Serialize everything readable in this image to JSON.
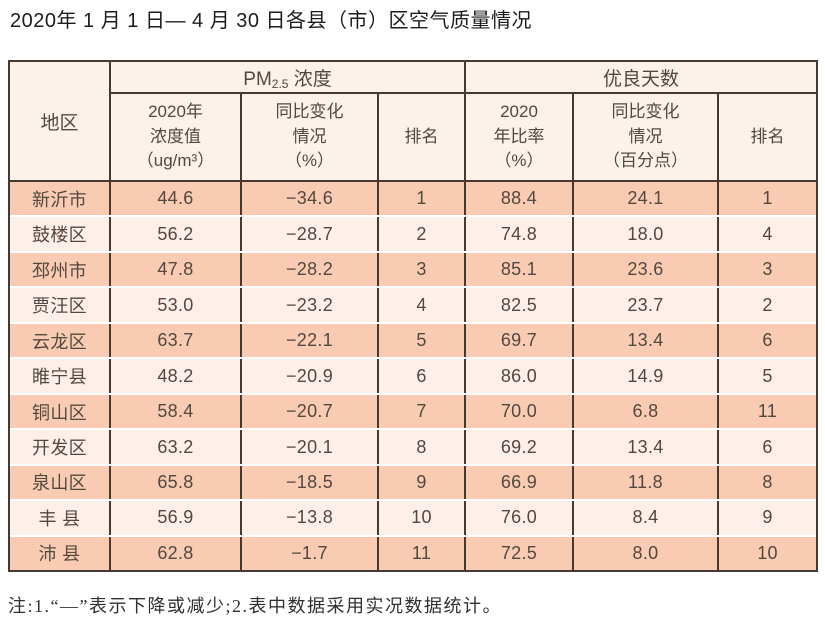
{
  "title": "2020年 1 月 1 日— 4 月 30 日各县（市）区空气质量情况",
  "note": "注:1.“—”表示下降或减少;2.表中数据采用实况数据统计。",
  "table": {
    "region_header": "地区",
    "pm_group": {
      "prefix": "PM",
      "sub": "2.5",
      "suffix": " 浓度"
    },
    "good_group": "优良天数",
    "sub_headers": [
      "2020年\n浓度值\n（ug/m³）",
      "同比变化\n情况\n（%）",
      "排名",
      "2020\n年比率\n（%）",
      "同比变化\n情况\n（百分点）",
      "排名"
    ],
    "rows": [
      {
        "region": "新沂市",
        "pm_value": "44.6",
        "pm_change": "−34.6",
        "pm_rank": "1",
        "good_rate": "88.4",
        "good_change": "24.1",
        "good_rank": "1"
      },
      {
        "region": "鼓楼区",
        "pm_value": "56.2",
        "pm_change": "−28.7",
        "pm_rank": "2",
        "good_rate": "74.8",
        "good_change": "18.0",
        "good_rank": "4"
      },
      {
        "region": "邳州市",
        "pm_value": "47.8",
        "pm_change": "−28.2",
        "pm_rank": "3",
        "good_rate": "85.1",
        "good_change": "23.6",
        "good_rank": "3"
      },
      {
        "region": "贾汪区",
        "pm_value": "53.0",
        "pm_change": "−23.2",
        "pm_rank": "4",
        "good_rate": "82.5",
        "good_change": "23.7",
        "good_rank": "2"
      },
      {
        "region": "云龙区",
        "pm_value": "63.7",
        "pm_change": "−22.1",
        "pm_rank": "5",
        "good_rate": "69.7",
        "good_change": "13.4",
        "good_rank": "6"
      },
      {
        "region": "睢宁县",
        "pm_value": "48.2",
        "pm_change": "−20.9",
        "pm_rank": "6",
        "good_rate": "86.0",
        "good_change": "14.9",
        "good_rank": "5"
      },
      {
        "region": "铜山区",
        "pm_value": "58.4",
        "pm_change": "−20.7",
        "pm_rank": "7",
        "good_rate": "70.0",
        "good_change": "6.8",
        "good_rank": "11"
      },
      {
        "region": "开发区",
        "pm_value": "63.2",
        "pm_change": "−20.1",
        "pm_rank": "8",
        "good_rate": "69.2",
        "good_change": "13.4",
        "good_rank": "6"
      },
      {
        "region": "泉山区",
        "pm_value": "65.8",
        "pm_change": "−18.5",
        "pm_rank": "9",
        "good_rate": "66.9",
        "good_change": "11.8",
        "good_rank": "8"
      },
      {
        "region": "丰 县",
        "pm_value": "56.9",
        "pm_change": "−13.8",
        "pm_rank": "10",
        "good_rate": "76.0",
        "good_change": "8.4",
        "good_rank": "9"
      },
      {
        "region": "沛 县",
        "pm_value": "62.8",
        "pm_change": "−1.7",
        "pm_rank": "11",
        "good_rate": "72.5",
        "good_change": "8.0",
        "good_rank": "10"
      }
    ]
  }
}
